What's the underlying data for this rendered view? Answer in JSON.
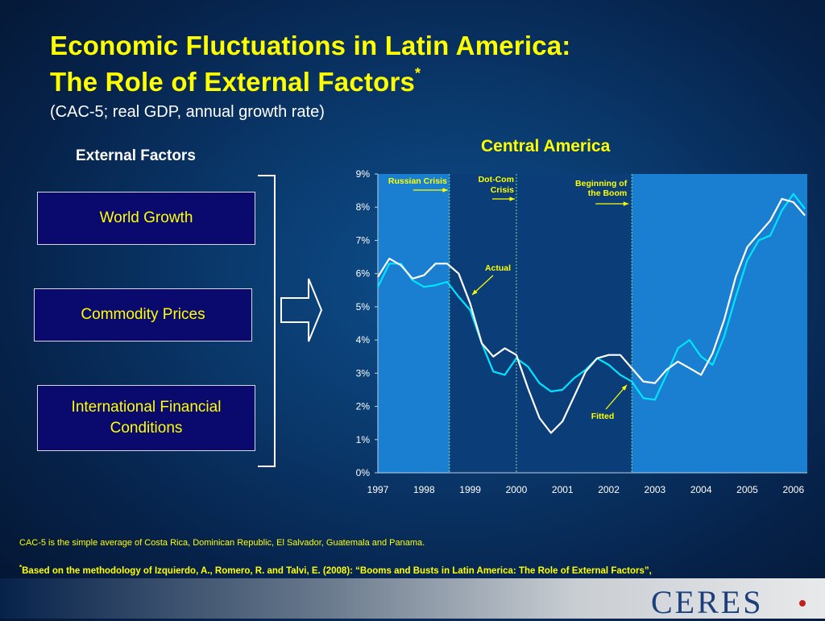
{
  "title_line1": "Economic Fluctuations in Latin America:",
  "title_line2": "The Role of External Factors",
  "title_mark": "*",
  "subtitle": "(CAC-5; real GDP, annual growth rate)",
  "external_factors": {
    "heading": "External Factors",
    "items": [
      "World Growth",
      "Commodity Prices",
      "International Financial Conditions"
    ]
  },
  "chart_data": {
    "type": "line",
    "title": "Central America",
    "x_labels": [
      "1997",
      "1998",
      "1999",
      "2000",
      "2001",
      "2002",
      "2003",
      "2004",
      "2005",
      "2006"
    ],
    "xlim": [
      1997,
      2006.3
    ],
    "ylim": [
      0,
      9
    ],
    "y_ticks": [
      "0%",
      "1%",
      "2%",
      "3%",
      "4%",
      "5%",
      "6%",
      "7%",
      "8%",
      "9%"
    ],
    "ylabel": "",
    "xlabel": "",
    "grid": false,
    "series": [
      {
        "name": "Actual",
        "color": "#00e5ff",
        "x": [
          1997.0,
          1997.25,
          1997.5,
          1997.75,
          1998.0,
          1998.25,
          1998.5,
          1998.75,
          1999.0,
          1999.25,
          1999.5,
          1999.75,
          2000.0,
          2000.25,
          2000.5,
          2000.75,
          2001.0,
          2001.25,
          2001.5,
          2001.75,
          2002.0,
          2002.25,
          2002.5,
          2002.75,
          2003.0,
          2003.25,
          2003.5,
          2003.75,
          2004.0,
          2004.25,
          2004.5,
          2004.75,
          2005.0,
          2005.25,
          2005.5,
          2005.75,
          2006.0,
          2006.25
        ],
        "y": [
          5.6,
          6.3,
          6.3,
          5.8,
          5.6,
          5.65,
          5.75,
          5.3,
          4.9,
          3.9,
          3.05,
          2.95,
          3.45,
          3.2,
          2.7,
          2.45,
          2.5,
          2.85,
          3.1,
          3.45,
          3.25,
          2.95,
          2.75,
          2.25,
          2.2,
          2.95,
          3.75,
          4.0,
          3.5,
          3.25,
          4.1,
          5.3,
          6.4,
          7.0,
          7.15,
          7.9,
          8.4,
          7.95
        ]
      },
      {
        "name": "Fitted",
        "color": "#ffffff",
        "x": [
          1997.0,
          1997.25,
          1997.5,
          1997.75,
          1998.0,
          1998.25,
          1998.5,
          1998.75,
          1999.0,
          1999.25,
          1999.5,
          1999.75,
          2000.0,
          2000.25,
          2000.5,
          2000.75,
          2001.0,
          2001.25,
          2001.5,
          2001.75,
          2002.0,
          2002.25,
          2002.5,
          2002.75,
          2003.0,
          2003.25,
          2003.5,
          2003.75,
          2004.0,
          2004.25,
          2004.5,
          2004.75,
          2005.0,
          2005.25,
          2005.5,
          2005.75,
          2006.0,
          2006.25
        ],
        "y": [
          5.9,
          6.45,
          6.25,
          5.85,
          5.95,
          6.3,
          6.3,
          6.0,
          5.1,
          3.9,
          3.5,
          3.75,
          3.55,
          2.55,
          1.65,
          1.2,
          1.55,
          2.3,
          3.05,
          3.45,
          3.55,
          3.55,
          3.15,
          2.75,
          2.7,
          3.1,
          3.35,
          3.15,
          2.95,
          3.6,
          4.6,
          5.9,
          6.8,
          7.2,
          7.6,
          8.25,
          8.15,
          7.75
        ]
      }
    ],
    "shaded_regions": [
      {
        "from": 1997.0,
        "to": 1998.55
      },
      {
        "from": 2002.5,
        "to": 2006.3
      }
    ],
    "event_lines": [
      {
        "x": 1998.55,
        "label": "Russian Crisis"
      },
      {
        "x": 2000.0,
        "label": "Dot-Com Crisis"
      },
      {
        "x": 2002.5,
        "label": "Beginning of the Boom"
      }
    ],
    "annotations": [
      "Actual",
      "Fitted"
    ]
  },
  "note": "CAC-5 is the simple average of Costa Rica, Dominican Republic, El Salvador, Guatemala and Panama.",
  "footnote_mark": "*",
  "footnote": "Based on the methodology of Izquierdo, A., Romero, R. and Talvi, E. (2008): “Booms and Busts in Latin America: The Role of External Factors”, IADB and CERES Working Paper",
  "logo_text": "CERES",
  "colors": {
    "title": "#ffff00",
    "actual": "#00e5ff",
    "fitted": "#ffffff",
    "box_fill": "#0a0a6e",
    "shade": "#1a7fd0"
  }
}
